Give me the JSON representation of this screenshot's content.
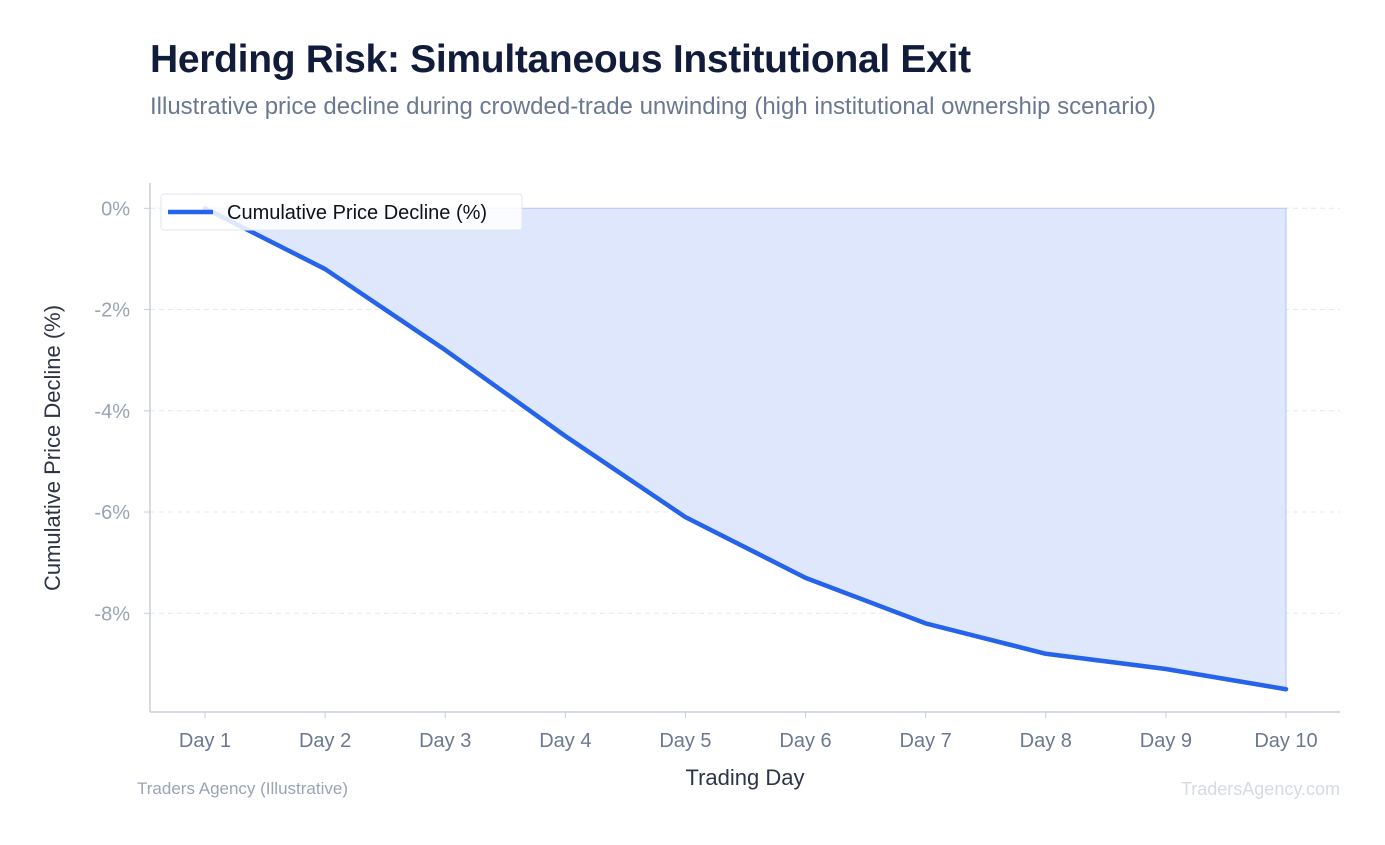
{
  "chart_data": {
    "type": "area",
    "title": "Herding Risk: Simultaneous Institutional Exit",
    "subtitle": "Illustrative price decline during crowded-trade unwinding (high institutional ownership scenario)",
    "xlabel": "Trading Day",
    "ylabel": "Cumulative Price Decline (%)",
    "categories": [
      "Day 1",
      "Day 2",
      "Day 3",
      "Day 4",
      "Day 5",
      "Day 6",
      "Day 7",
      "Day 8",
      "Day 9",
      "Day 10"
    ],
    "series": [
      {
        "name": "Cumulative Price Decline (%)",
        "values": [
          0,
          -1.2,
          -2.8,
          -4.5,
          -6.1,
          -7.3,
          -8.2,
          -8.8,
          -9.1,
          -9.5
        ]
      }
    ],
    "y_ticks": [
      0,
      -2,
      -4,
      -6,
      -8
    ],
    "y_tick_labels": [
      "0%",
      "-2%",
      "-4%",
      "-6%",
      "-8%"
    ],
    "ylim": [
      -9.95,
      0.5
    ],
    "grid": "horizontal dashed",
    "legend_position": "top-left",
    "line_color": "#2563eb",
    "fill_color": "#dce6fb"
  },
  "footer": {
    "source_left": "Traders Agency (Illustrative)",
    "source_right": "TradersAgency.com"
  }
}
